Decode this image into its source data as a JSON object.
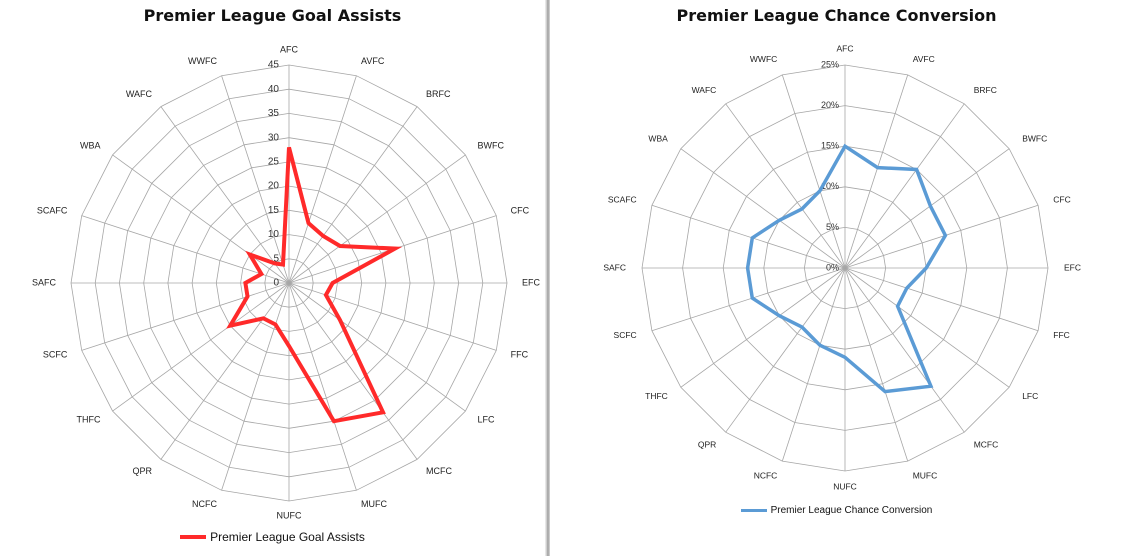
{
  "chart_data": [
    {
      "type": "radar",
      "title": "Premier League Goal Assists",
      "categories": [
        "AFC",
        "AVFC",
        "BRFC",
        "BWFC",
        "CFC",
        "EFC",
        "FFC",
        "LFC",
        "MCFC",
        "MUFC",
        "NUFC",
        "NCFC",
        "QPR",
        "THFC",
        "SCFC",
        "SAFC",
        "SCAFC",
        "WBA",
        "WAFC",
        "WWFC"
      ],
      "ticks": [
        "0",
        "5",
        "10",
        "15",
        "20",
        "25",
        "30",
        "35",
        "40",
        "45"
      ],
      "ylim": [
        0,
        45
      ],
      "grid": true,
      "legend_position": "bottom",
      "series": [
        {
          "name": "Premier League Goal Assists",
          "color": "#ff2a2a",
          "values": [
            28,
            13,
            12,
            13,
            23,
            9,
            8,
            13,
            33,
            30,
            13,
            9,
            9,
            15,
            9,
            9,
            6,
            10,
            5,
            4
          ]
        }
      ]
    },
    {
      "type": "radar",
      "title": "Premier League Chance Conversion",
      "categories": [
        "AFC",
        "AVFC",
        "BRFC",
        "BWFC",
        "CFC",
        "EFC",
        "FFC",
        "LFC",
        "MCFC",
        "MUFC",
        "NUFC",
        "NCFC",
        "QPR",
        "THFC",
        "SCFC",
        "SAFC",
        "SCAFC",
        "WBA",
        "WAFC",
        "WWFC"
      ],
      "ticks": [
        "0%",
        "5%",
        "10%",
        "15%",
        "20%",
        "25%"
      ],
      "ylim": [
        0,
        0.25
      ],
      "grid": true,
      "legend_position": "bottom",
      "series": [
        {
          "name": "Premier League Chance Conversion",
          "color": "#5b9bd5",
          "values": [
            0.15,
            0.13,
            0.15,
            0.13,
            0.13,
            0.1,
            0.08,
            0.08,
            0.18,
            0.16,
            0.11,
            0.1,
            0.09,
            0.1,
            0.12,
            0.12,
            0.12,
            0.1,
            0.09,
            0.1
          ]
        }
      ]
    }
  ]
}
